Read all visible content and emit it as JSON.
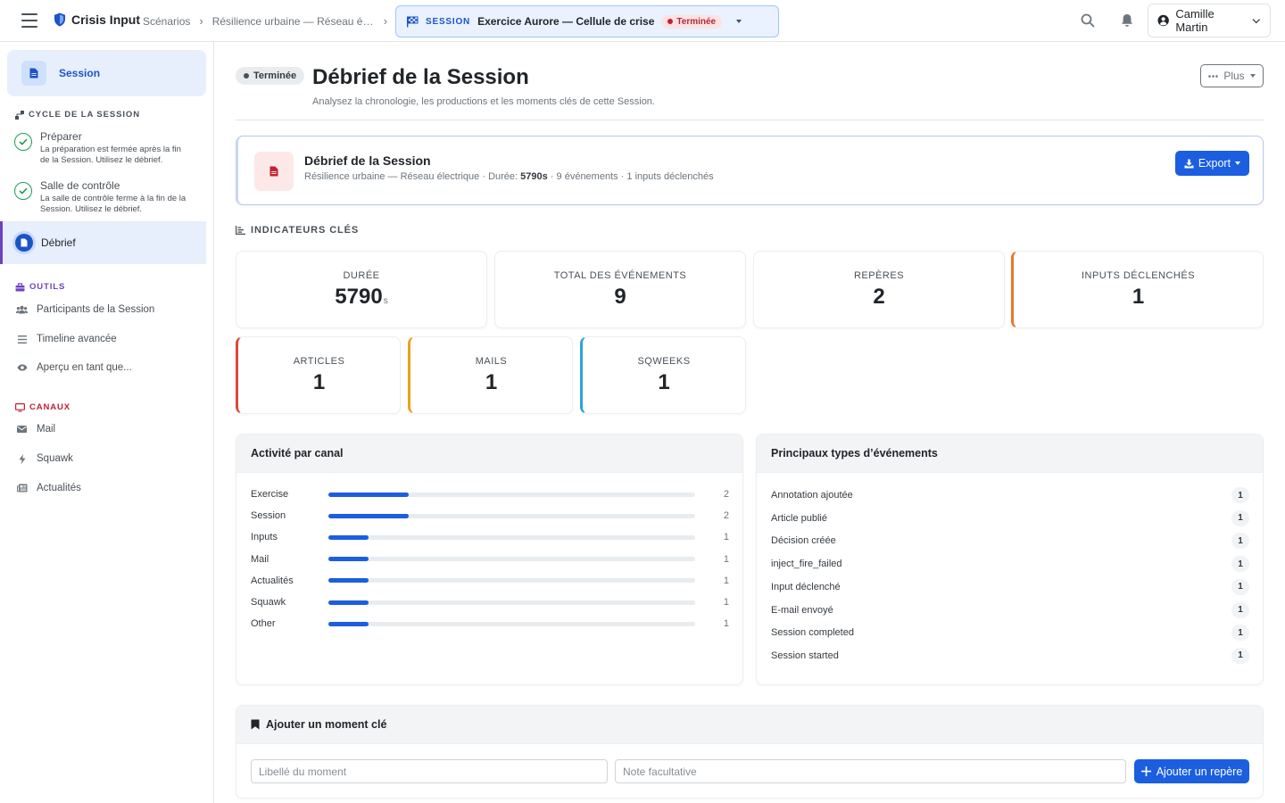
{
  "header": {
    "app_name": "Crisis Input",
    "breadcrumbs": [
      "Scénarios",
      "Résilience urbaine — Réseau éle…"
    ],
    "session_tag": "SESSION",
    "session_name": "Exercice Aurore — Cellule de crise",
    "session_status": "Terminée",
    "user_name": "Camille Martin"
  },
  "sidebar": {
    "session_label": "Session",
    "cycle_heading": "CYCLE DE LA SESSION",
    "steps": [
      {
        "title": "Préparer",
        "desc": "La préparation est fermée après la fin de la Session. Utilisez le débrief."
      },
      {
        "title": "Salle de contrôle",
        "desc": "La salle de contrôle ferme à la fin de la Session. Utilisez le débrief."
      },
      {
        "title": "Débrief"
      }
    ],
    "tools_heading": "OUTILS",
    "tools": [
      "Participants de la Session",
      "Timeline avancée",
      "Aperçu en tant que..."
    ],
    "channels_heading": "CANAUX",
    "channels": [
      "Mail",
      "Squawk",
      "Actualités"
    ],
    "colors": {
      "tools": "#6f42c1",
      "channels": "#c42030",
      "cycle": "#495057",
      "success": "#1e9e4f"
    }
  },
  "page": {
    "status": "Terminée",
    "title": "Débrief de la Session",
    "subtitle": "Analysez la chronologie, les productions et les moments clés de cette Session.",
    "more_label": "Plus"
  },
  "debrief": {
    "title": "Débrief de la Session",
    "scenario": "Résilience urbaine — Réseau électrique",
    "duration_label": "Durée:",
    "duration_value": "5790s",
    "events_text": "9 événements",
    "inputs_text": "1 inputs déclenchés",
    "export_label": "Export"
  },
  "indicators": {
    "heading": "INDICATEURS CLÉS",
    "row1": [
      {
        "label": "DURÉE",
        "value": "5790",
        "unit": "s"
      },
      {
        "label": "TOTAL DES ÉVÉNEMENTS",
        "value": "9"
      },
      {
        "label": "REPÈRES",
        "value": "2"
      },
      {
        "label": "INPUTS DÉCLENCHÉS",
        "value": "1"
      }
    ],
    "row2": [
      {
        "label": "ARTICLES",
        "value": "1"
      },
      {
        "label": "MAILS",
        "value": "1"
      },
      {
        "label": "SQWEEKS",
        "value": "1"
      }
    ],
    "accent_colors": {
      "inputs": "#e8782a",
      "articles": "#dc4a3a",
      "mails": "#e8a21c",
      "sqweeks": "#2aa5d8"
    }
  },
  "activity": {
    "title": "Activité par canal",
    "max": 2,
    "rows": [
      {
        "name": "Exercise",
        "count": 2
      },
      {
        "name": "Session",
        "count": 2
      },
      {
        "name": "Inputs",
        "count": 1
      },
      {
        "name": "Mail",
        "count": 1
      },
      {
        "name": "Actualités",
        "count": 1
      },
      {
        "name": "Squawk",
        "count": 1
      },
      {
        "name": "Other",
        "count": 1
      }
    ],
    "bar_color": "#1b5ee0"
  },
  "event_types": {
    "title": "Principaux types d’événements",
    "rows": [
      {
        "name": "Annotation ajoutée",
        "count": "1"
      },
      {
        "name": "Article publié",
        "count": "1"
      },
      {
        "name": "Décision créée",
        "count": "1"
      },
      {
        "name": "inject_fire_failed",
        "count": "1"
      },
      {
        "name": "Input déclenché",
        "count": "1"
      },
      {
        "name": "E-mail envoyé",
        "count": "1"
      },
      {
        "name": "Session completed",
        "count": "1"
      },
      {
        "name": "Session started",
        "count": "1"
      }
    ]
  },
  "moment": {
    "title": "Ajouter un moment clé",
    "label_placeholder": "Libellé du moment",
    "note_placeholder": "Note facultative",
    "add_label": "Ajouter un repère"
  }
}
